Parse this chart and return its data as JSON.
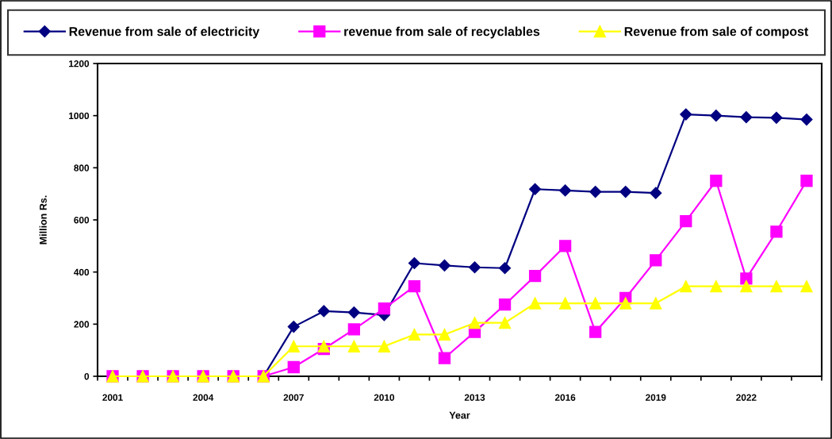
{
  "chart_data": {
    "type": "line",
    "xlabel": "Year",
    "ylabel": "Million Rs.",
    "categories": [
      "2001",
      null,
      null,
      "2004",
      null,
      null,
      "2007",
      null,
      null,
      "2010",
      null,
      null,
      "2013",
      null,
      null,
      "2016",
      null,
      null,
      "2019",
      null,
      null,
      "2022",
      null,
      null
    ],
    "ylim": [
      0,
      1200
    ],
    "yticks": [
      0,
      200,
      400,
      600,
      800,
      1000,
      1200
    ],
    "grid": false,
    "legend": "top",
    "line_style": "solid",
    "series": [
      {
        "name": "Revenue from sale of electricity",
        "color": "#000080",
        "marker": "diamond",
        "values": [
          null,
          null,
          null,
          null,
          null,
          0,
          190,
          250,
          245,
          235,
          434,
          425,
          418,
          415,
          718,
          713,
          708,
          708,
          703,
          1005,
          1000,
          994,
          992,
          985
        ]
      },
      {
        "name": "revenue from sale of recyclables",
        "color": "#ff00ff",
        "marker": "square",
        "values": [
          0,
          0,
          0,
          0,
          0,
          0,
          35,
          105,
          180,
          260,
          345,
          70,
          170,
          275,
          385,
          500,
          170,
          300,
          445,
          595,
          750,
          375,
          555,
          750
        ]
      },
      {
        "name": "Revenue from sale of compost",
        "color": "#ffff00",
        "marker": "triangle",
        "values": [
          0,
          0,
          0,
          0,
          0,
          0,
          115,
          115,
          115,
          115,
          160,
          160,
          205,
          205,
          280,
          280,
          280,
          280,
          280,
          345,
          345,
          345,
          345,
          345
        ]
      }
    ]
  }
}
